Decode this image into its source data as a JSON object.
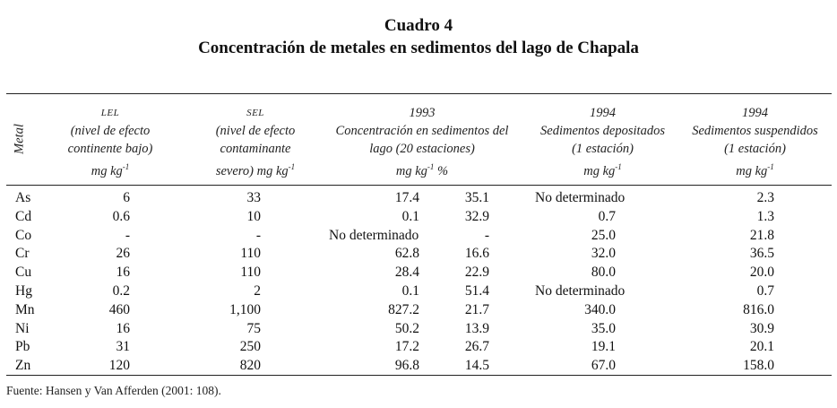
{
  "title": "Cuadro 4",
  "subtitle": "Concentración de metales en sedimentos del lago de Chapala",
  "headers": {
    "metal": "Metal",
    "lel": {
      "abbr": "LEL",
      "line1": "(nivel de efecto",
      "line2": "continente bajo)",
      "unit": "mg kg",
      "exp": "-1"
    },
    "sel": {
      "abbr": "SEL",
      "line1": "(nivel de efecto",
      "line2": "contaminante",
      "line3": "severo) mg kg",
      "exp": "-1"
    },
    "c1993": {
      "year": "1993",
      "line1": "Concentración en sedimentos del",
      "line2": "lago (20 estaciones)",
      "unit": "mg kg",
      "exp": "-1",
      "pct": " %"
    },
    "dep1994": {
      "year": "1994",
      "line1": "Sedimentos depositados",
      "line2": "(1 estación)",
      "unit": "mg kg",
      "exp": "-1"
    },
    "sus1994": {
      "year": "1994",
      "line1": "Sedimentos suspendidos",
      "line2": "(1 estación)",
      "unit": "mg kg",
      "exp": "-1"
    }
  },
  "rows": [
    {
      "metal": "As",
      "lel": "6",
      "sel": "33",
      "c93a": "17.4",
      "c93b": "35.1",
      "dep": "No determinado",
      "sus": "2.3"
    },
    {
      "metal": "Cd",
      "lel": "0.6",
      "sel": "10",
      "c93a": "0.1",
      "c93b": "32.9",
      "dep": "0.7",
      "sus": "1.3"
    },
    {
      "metal": "Co",
      "lel": "-",
      "sel": "-",
      "c93a": "No determinado",
      "c93b": "-",
      "dep": "25.0",
      "sus": "21.8"
    },
    {
      "metal": "Cr",
      "lel": "26",
      "sel": "110",
      "c93a": "62.8",
      "c93b": "16.6",
      "dep": "32.0",
      "sus": "36.5"
    },
    {
      "metal": "Cu",
      "lel": "16",
      "sel": "110",
      "c93a": "28.4",
      "c93b": "22.9",
      "dep": "80.0",
      "sus": "20.0"
    },
    {
      "metal": "Hg",
      "lel": "0.2",
      "sel": "2",
      "c93a": "0.1",
      "c93b": "51.4",
      "dep": "No determinado",
      "sus": "0.7"
    },
    {
      "metal": "Mn",
      "lel": "460",
      "sel": "1,100",
      "c93a": "827.2",
      "c93b": "21.7",
      "dep": "340.0",
      "sus": "816.0"
    },
    {
      "metal": "Ni",
      "lel": "16",
      "sel": "75",
      "c93a": "50.2",
      "c93b": "13.9",
      "dep": "35.0",
      "sus": "30.9"
    },
    {
      "metal": "Pb",
      "lel": "31",
      "sel": "250",
      "c93a": "17.2",
      "c93b": "26.7",
      "dep": "19.1",
      "sus": "20.1"
    },
    {
      "metal": "Zn",
      "lel": "120",
      "sel": "820",
      "c93a": "96.8",
      "c93b": "14.5",
      "dep": "67.0",
      "sus": "158.0"
    }
  ],
  "footer": "Fuente: Hansen y Van Afferden (2001: 108)."
}
